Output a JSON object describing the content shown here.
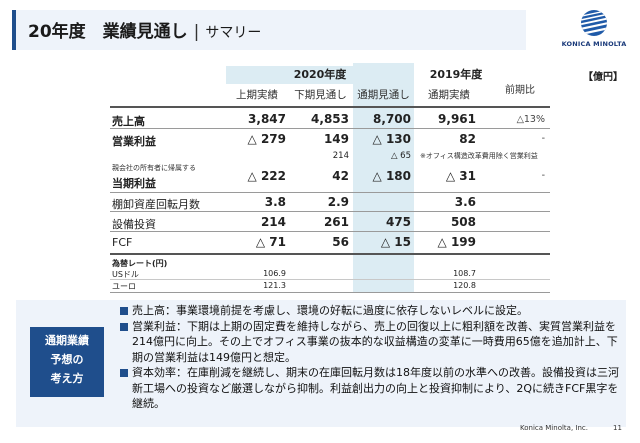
{
  "header": {
    "title": "20年度　業績見通し",
    "separator": "|",
    "subtitle": "サマリー",
    "logo_text": "KONICA MINOLTA"
  },
  "unit": "【億円】",
  "table": {
    "year_2020": "2020年度",
    "year_2019": "2019年度",
    "col_h1": "上期実績",
    "col_h2": "下期見通し",
    "col_fy": "通期見通し",
    "col_fy19": "通期実績",
    "col_yoy": "前期比",
    "rows": [
      {
        "label": "売上高",
        "h1": "3,847",
        "h2": "4,853",
        "fy": "8,700",
        "fy19": "9,961",
        "yoy": "△13%"
      },
      {
        "label": "営業利益",
        "h1": "△ 279",
        "h2": "149",
        "fy": "△ 130",
        "fy19": "82",
        "yoy": "-"
      },
      {
        "label": "",
        "h1": "",
        "h2": "214",
        "fy": "△ 65",
        "fy19": "",
        "yoy": ""
      },
      {
        "label_small": "親会社の所有者に帰属する",
        "label": "当期利益",
        "h1": "△ 222",
        "h2": "42",
        "fy": "△ 180",
        "fy19": "△ 31",
        "yoy": "-"
      },
      {
        "label": "棚卸資産回転月数",
        "h1": "3.8",
        "h2": "2.9",
        "fy": "",
        "fy19": "3.6",
        "yoy": ""
      },
      {
        "label": "設備投資",
        "h1": "214",
        "h2": "261",
        "fy": "475",
        "fy19": "508",
        "yoy": ""
      },
      {
        "label": "FCF",
        "h1": "△ 71",
        "h2": "56",
        "fy": "△ 15",
        "fy19": "△ 199",
        "yoy": ""
      }
    ],
    "office_note": "※オフィス構造改革費用除く営業利益",
    "rate_title": "為替レート(円)",
    "rates": [
      {
        "label": "USドル",
        "h1": "106.9",
        "fy19": "108.7"
      },
      {
        "label": "ユーロ",
        "h1": "121.3",
        "fy19": "120.8"
      }
    ]
  },
  "summary": {
    "badge_lines": [
      "通期業績",
      "予想の",
      "考え方"
    ],
    "bullets": [
      "売上高：事業環境前提を考慮し、環境の好転に過度に依存しないレベルに設定。",
      "営業利益：下期は上期の固定費を維持しながら、売上の回復以上に粗利額を改善、実質営業利益を214億円に向上。その上でオフィス事業の抜本的な収益構造の変革に一時費用65億を追加計上、下期の営業利益は149億円と想定。",
      "資本効率：在庫削減を継続し、期末の在庫回転月数は18年度以前の水準への改善。設備投資は三河新工場への投資など厳選しながら抑制。利益創出力の向上と投資抑制により、2Qに続きFCF黒字を継続。"
    ]
  },
  "footer": {
    "company": "Konica Minolta, Inc.",
    "page": "11"
  }
}
